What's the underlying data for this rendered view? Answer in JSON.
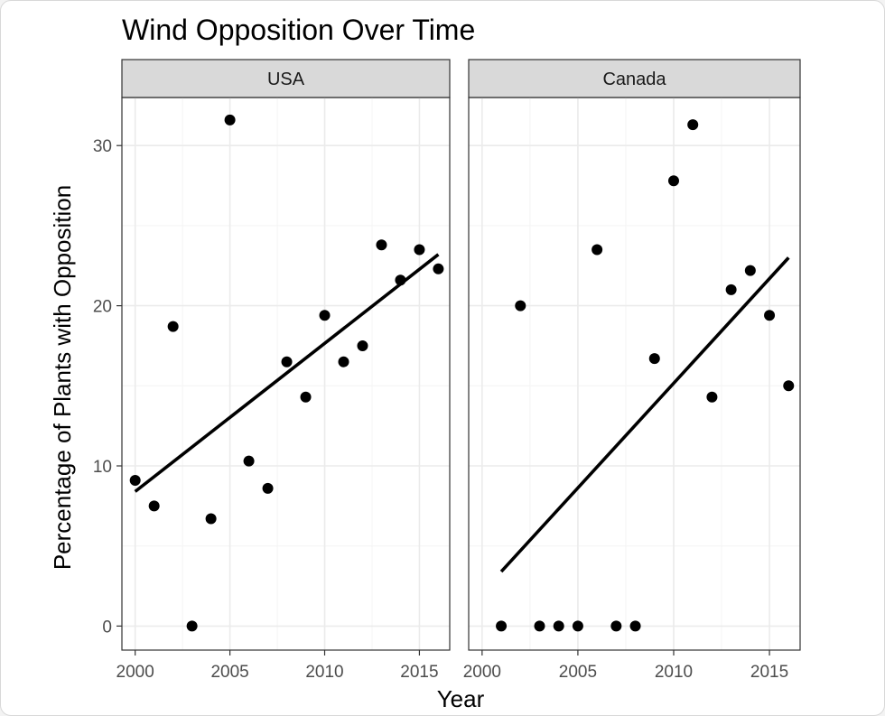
{
  "chart_data": {
    "type": "scatter",
    "title": "Wind Opposition Over Time",
    "xlabel": "Year",
    "ylabel": "Percentage of Plants with Opposition",
    "xlim": [
      1999.3,
      2016.6
    ],
    "ylim": [
      -1.5,
      33
    ],
    "x_ticks": [
      "2000",
      "2005",
      "2010",
      "2015"
    ],
    "y_ticks": [
      "0",
      "10",
      "20",
      "30"
    ],
    "x_tick_values": [
      2000,
      2005,
      2010,
      2015
    ],
    "y_tick_values": [
      0,
      10,
      20,
      30
    ],
    "grid": true,
    "colors": {
      "points": "#000000",
      "strip_bg": "#d9d9d9",
      "grid": "#ebebeb"
    },
    "panels": [
      {
        "name": "USA",
        "points": [
          {
            "x": 2000,
            "y": 9.1
          },
          {
            "x": 2001,
            "y": 7.5
          },
          {
            "x": 2002,
            "y": 18.7
          },
          {
            "x": 2003,
            "y": 0.0
          },
          {
            "x": 2004,
            "y": 6.7
          },
          {
            "x": 2005,
            "y": 31.6
          },
          {
            "x": 2006,
            "y": 10.3
          },
          {
            "x": 2007,
            "y": 8.6
          },
          {
            "x": 2008,
            "y": 16.5
          },
          {
            "x": 2009,
            "y": 14.3
          },
          {
            "x": 2010,
            "y": 19.4
          },
          {
            "x": 2011,
            "y": 16.5
          },
          {
            "x": 2012,
            "y": 17.5
          },
          {
            "x": 2013,
            "y": 23.8
          },
          {
            "x": 2014,
            "y": 21.6
          },
          {
            "x": 2015,
            "y": 23.5
          },
          {
            "x": 2016,
            "y": 22.3
          }
        ],
        "trend": {
          "x": [
            2000,
            2016
          ],
          "y": [
            8.4,
            23.2
          ]
        }
      },
      {
        "name": "Canada",
        "points": [
          {
            "x": 2001,
            "y": 0.0
          },
          {
            "x": 2002,
            "y": 20.0
          },
          {
            "x": 2003,
            "y": 0.0
          },
          {
            "x": 2004,
            "y": 0.0
          },
          {
            "x": 2005,
            "y": 0.0
          },
          {
            "x": 2006,
            "y": 23.5
          },
          {
            "x": 2007,
            "y": 0.0
          },
          {
            "x": 2008,
            "y": 0.0
          },
          {
            "x": 2009,
            "y": 16.7
          },
          {
            "x": 2010,
            "y": 27.8
          },
          {
            "x": 2011,
            "y": 31.3
          },
          {
            "x": 2012,
            "y": 14.3
          },
          {
            "x": 2013,
            "y": 21.0
          },
          {
            "x": 2014,
            "y": 22.2
          },
          {
            "x": 2015,
            "y": 19.4
          },
          {
            "x": 2016,
            "y": 15.0
          }
        ],
        "trend": {
          "x": [
            2001,
            2016
          ],
          "y": [
            3.4,
            23.0
          ]
        }
      }
    ]
  }
}
